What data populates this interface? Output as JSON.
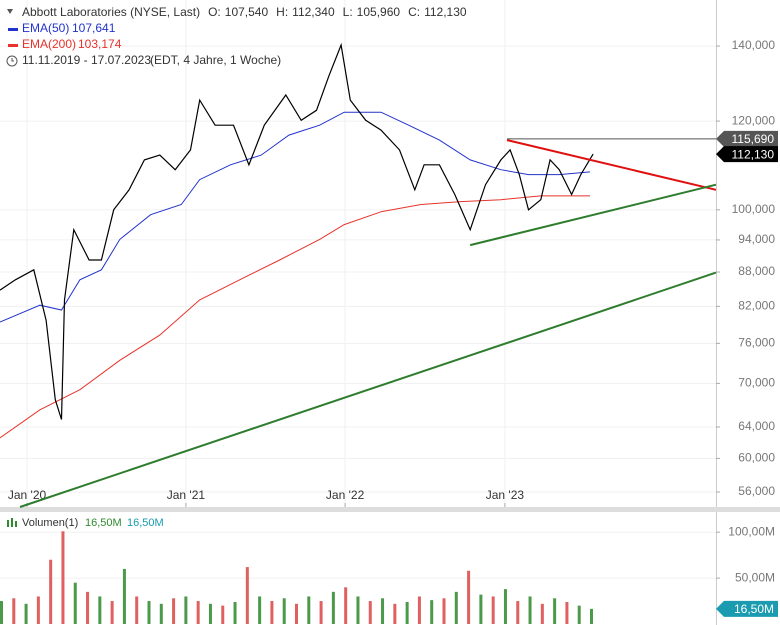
{
  "header": {
    "instrument": "Abbott Laboratories (NYSE, Last)",
    "ohlc": [
      {
        "key": "O:",
        "label": "107,540"
      },
      {
        "key": "H:",
        "label": "112,340"
      },
      {
        "key": "L:",
        "label": "105,960"
      },
      {
        "key": "C:",
        "label": "112,130"
      }
    ],
    "range": "11.11.2019 - 17.07.2023",
    "range_note": "(EDT, 4 Jahre, 1 Woche)"
  },
  "chart_data": [
    {
      "type": "line",
      "log_scale": true,
      "grid": true,
      "xlim": [
        0,
        233
      ],
      "xticks": [
        {
          "value": 8.8,
          "label": "Jan '20"
        },
        {
          "value": 60.5,
          "label": "Jan '21"
        },
        {
          "value": 112.3,
          "label": "Jan '22"
        },
        {
          "value": 164.3,
          "label": "Jan '23"
        }
      ],
      "ylim": [
        54300,
        153900
      ],
      "yticks": [
        {
          "value": 140000,
          "label": "140,000"
        },
        {
          "value": 120000,
          "label": "120,000"
        },
        {
          "value": 100000,
          "label": "100,000"
        },
        {
          "value": 94000,
          "label": "94,000"
        },
        {
          "value": 88000,
          "label": "88,000"
        },
        {
          "value": 82000,
          "label": "82,000"
        },
        {
          "value": 76000,
          "label": "76,000"
        },
        {
          "value": 70000,
          "label": "70,000"
        },
        {
          "value": 64000,
          "label": "64,000"
        },
        {
          "value": 60000,
          "label": "60,000"
        },
        {
          "value": 56000,
          "label": "56,000"
        }
      ],
      "series": [
        {
          "name": "Abbott Laboratories (NYSE, Last)",
          "color": "#000000",
          "x": [
            0,
            5,
            11,
            15,
            18,
            20,
            21,
            24,
            29,
            33,
            37,
            42,
            47,
            52,
            57,
            62,
            65,
            70,
            76,
            81,
            86,
            93,
            98,
            103,
            107,
            111,
            114,
            119,
            124,
            130,
            135,
            138,
            143,
            148,
            153,
            158,
            163,
            166,
            169,
            172,
            176,
            179,
            182,
            186,
            189,
            193
          ],
          "values": [
            84800,
            86600,
            88400,
            79700,
            67700,
            65000,
            83100,
            96000,
            90200,
            90200,
            100000,
            104200,
            110800,
            111900,
            108600,
            113100,
            125300,
            119000,
            119000,
            109700,
            119000,
            126600,
            120200,
            122700,
            131600,
            140300,
            125300,
            120200,
            117800,
            113100,
            104200,
            109700,
            109700,
            103200,
            96000,
            105300,
            110800,
            113100,
            107500,
            100000,
            102100,
            110800,
            108600,
            103200,
            107500,
            112130
          ]
        },
        {
          "name": "EMA(50)",
          "color": "#2233cc",
          "last": {
            "value": 107641,
            "label": "107,641"
          },
          "x": [
            0,
            13,
            20,
            26,
            33,
            39,
            49,
            59,
            65,
            75,
            85,
            94,
            104,
            112,
            124,
            133,
            143,
            153,
            163,
            172,
            182,
            192
          ],
          "values": [
            79400,
            82200,
            81400,
            86600,
            88400,
            94100,
            99000,
            101100,
            106400,
            109700,
            111900,
            116600,
            119000,
            122200,
            122200,
            119000,
            115400,
            110800,
            108600,
            107500,
            107500,
            108100
          ]
        },
        {
          "name": "EMA(200)",
          "color": "#e8322b",
          "last": {
            "value": 103174,
            "label": "103,174"
          },
          "x": [
            0,
            13,
            26,
            39,
            52,
            65,
            78,
            91,
            104,
            112,
            124,
            137,
            150,
            163,
            176,
            192
          ],
          "values": [
            62600,
            66300,
            69100,
            73400,
            77300,
            83100,
            86600,
            90200,
            94100,
            97000,
            99600,
            101100,
            101700,
            102100,
            102900,
            102900
          ]
        }
      ],
      "trendlines": [
        {
          "color": "#e01010",
          "x": [
            165,
            233
          ],
          "values": [
            115400,
            104200
          ]
        },
        {
          "color": "#2e7d2e",
          "x": [
            153,
            233
          ],
          "values": [
            93000,
            105300
          ]
        },
        {
          "color": "#2e7d2e",
          "x": [
            6.5,
            233
          ],
          "values": [
            54300,
            87900
          ]
        }
      ],
      "markers": [
        {
          "value": 115690,
          "label": "115,690",
          "color": "#555555",
          "from": 165
        },
        {
          "value": 112130,
          "label": "112,130",
          "color": "#000000"
        }
      ]
    },
    {
      "type": "bar",
      "name": "Volumen(1)",
      "legend_values": [
        {
          "label": "16,50M",
          "color": "#2e8b2e"
        },
        {
          "label": "16,50M",
          "color": "#1a9bb0"
        }
      ],
      "xlim": [
        0,
        233
      ],
      "ylim": [
        0,
        122
      ],
      "yticks": [
        {
          "value": 100,
          "label": "100,00M"
        },
        {
          "value": 50,
          "label": "50,00M"
        }
      ],
      "x": [
        0,
        4,
        8,
        12,
        16,
        20,
        24,
        28,
        32,
        36,
        40,
        44,
        48,
        52,
        56,
        60,
        64,
        68,
        72,
        76,
        80,
        84,
        88,
        92,
        96,
        100,
        104,
        108,
        112,
        116,
        120,
        124,
        128,
        132,
        136,
        140,
        144,
        148,
        152,
        156,
        160,
        164,
        168,
        172,
        176,
        180,
        184,
        188,
        192
      ],
      "values": [
        25,
        28,
        22,
        30,
        70,
        101,
        45,
        35,
        30,
        25,
        60,
        30,
        25,
        22,
        28,
        30,
        25,
        22,
        20,
        24,
        62,
        30,
        25,
        28,
        22,
        30,
        25,
        35,
        40,
        30,
        25,
        28,
        22,
        24,
        30,
        26,
        28,
        35,
        58,
        32,
        30,
        38,
        25,
        30,
        22,
        28,
        24,
        20,
        16.5
      ],
      "colors": [
        "#4a9a4a",
        "#e06060",
        "#4a9a4a",
        "#e06060",
        "#e06060",
        "#e06060",
        "#4a9a4a",
        "#e06060",
        "#4a9a4a",
        "#e06060",
        "#4a9a4a",
        "#e06060",
        "#4a9a4a",
        "#4a9a4a",
        "#e06060",
        "#4a9a4a",
        "#e06060",
        "#4a9a4a",
        "#e06060",
        "#4a9a4a",
        "#e06060",
        "#4a9a4a",
        "#e06060",
        "#4a9a4a",
        "#e06060",
        "#4a9a4a",
        "#e06060",
        "#4a9a4a",
        "#e06060",
        "#4a9a4a",
        "#e06060",
        "#4a9a4a",
        "#e06060",
        "#4a9a4a",
        "#e06060",
        "#4a9a4a",
        "#e06060",
        "#4a9a4a",
        "#e06060",
        "#4a9a4a",
        "#e06060",
        "#4a9a4a",
        "#e06060",
        "#4a9a4a",
        "#e06060",
        "#4a9a4a",
        "#e06060",
        "#4a9a4a",
        "#4a9a4a"
      ],
      "value_labels": {
        "index": 48,
        "label": "16,50M",
        "color": "#1a9bb0"
      }
    }
  ]
}
